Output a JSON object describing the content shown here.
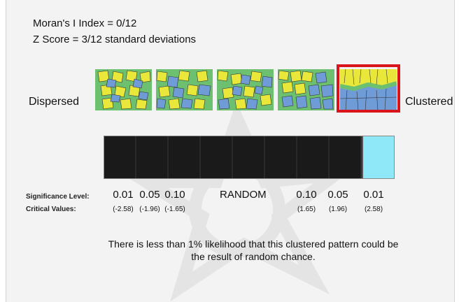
{
  "header": {
    "morans_i": "Moran's I Index = 0/12",
    "z_score": "Z Score = 3/12 standard deviations"
  },
  "labels": {
    "dispersed": "Dispersed",
    "clustered": "Clustered",
    "significance_level": "Significance Level:",
    "critical_values": "Critical Values:",
    "random": "RANDOM"
  },
  "levels": {
    "left": [
      "0.01",
      "0.05",
      "0.10"
    ],
    "right": [
      "0.10",
      "0.05",
      "0.01"
    ]
  },
  "critical_values": {
    "left": [
      "(-2.58)",
      "(-1.96)",
      "(-1.65)"
    ],
    "right": [
      "(1.65)",
      "(1.96)",
      "(2.58)"
    ]
  },
  "bar": {
    "segments": 9,
    "active_segment": 9,
    "active_color": "#8ee8f7",
    "inactive_color": "#1a1a1a"
  },
  "message": "There is less than 1% likelihood that this clustered pattern could be the result of random chance.",
  "colors": {
    "highlight": "#d9141b",
    "yellow": "#e9e83a",
    "blue": "#6f9bd6",
    "green": "#6cc070"
  }
}
